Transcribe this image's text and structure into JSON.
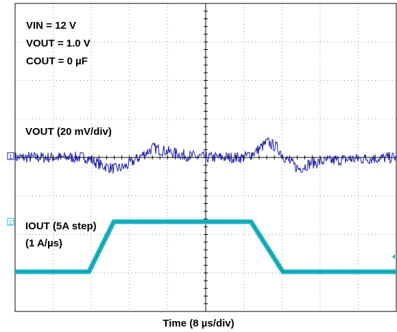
{
  "chart_data": {
    "type": "line",
    "title": "",
    "xlabel": "Time (8 µs/div)",
    "ylabel": "",
    "grid": true,
    "grid_divisions": {
      "x": 10,
      "y": 8
    },
    "conditions": [
      "VIN = 12 V",
      "VOUT = 1.0 V",
      "COUT = 0 µF"
    ],
    "x_unit": "µs",
    "xlim": [
      -40,
      40
    ],
    "series": [
      {
        "name": "VOUT (20 mV/div)",
        "channel": "1",
        "color": "#1a1aa8",
        "scale_per_div": 20,
        "unit": "mV",
        "noise_pp": 6,
        "x": [
          -40,
          -25,
          -22,
          -19,
          -17,
          -14,
          -11,
          -8,
          -4,
          0,
          8,
          10.5,
          13,
          15,
          17,
          19.5,
          22,
          25,
          30,
          40
        ],
        "values": [
          0,
          0,
          -4,
          -6,
          -5,
          0,
          5,
          3,
          1,
          0,
          0,
          3,
          8,
          5,
          -1,
          -6,
          -3,
          -2,
          -1,
          0
        ]
      },
      {
        "name": "IOUT (5A step)",
        "name_line2": "(1 A/µs)",
        "channel": "2",
        "color": "#20b8c8",
        "scale_per_div": 1,
        "unit": "A",
        "x": [
          -40,
          -24.5,
          -19.3,
          9.5,
          16.2,
          40
        ],
        "values": [
          0,
          0,
          1.3,
          1.3,
          0,
          0
        ]
      }
    ],
    "labels": {
      "conditions": [
        "VIN = 12 V",
        "VOUT = 1.0 V",
        "COUT = 0 µF"
      ],
      "vout": "VOUT (20 mV/div)",
      "iout_line1": "IOUT (5A step)",
      "iout_line2": "(1 A/µs)",
      "ch1": "1",
      "ch2": "2",
      "xlabel": "Time (8 µs/div)"
    }
  }
}
